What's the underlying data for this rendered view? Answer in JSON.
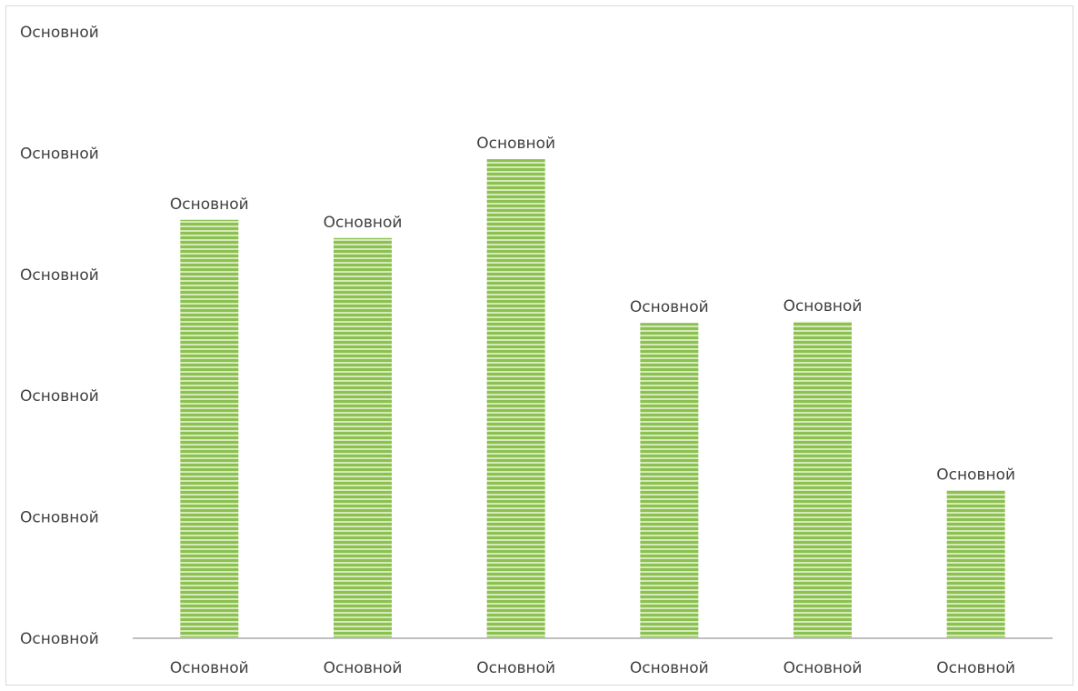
{
  "chart_data": {
    "type": "bar",
    "title": "",
    "xlabel": "",
    "ylabel": "",
    "ylim": [
      0,
      5
    ],
    "y_ticks": [
      0,
      1,
      2,
      3,
      4,
      5
    ],
    "y_tick_labels": [
      "Основной",
      "Основной",
      "Основной",
      "Основной",
      "Основной",
      "Основной"
    ],
    "categories": [
      "Основной",
      "Основной",
      "Основной",
      "Основной",
      "Основной",
      "Основной"
    ],
    "values": [
      3.45,
      3.3,
      3.95,
      2.6,
      2.61,
      1.22
    ],
    "data_labels": [
      "Основной",
      "Основной",
      "Основной",
      "Основной",
      "Основной",
      "Основной"
    ],
    "bar_color": "#8cc152",
    "bar_stripe_color": "#d4eab8",
    "axis_color": "#bfbfbf",
    "text_color": "#404040",
    "grid": false,
    "legend": "none"
  }
}
